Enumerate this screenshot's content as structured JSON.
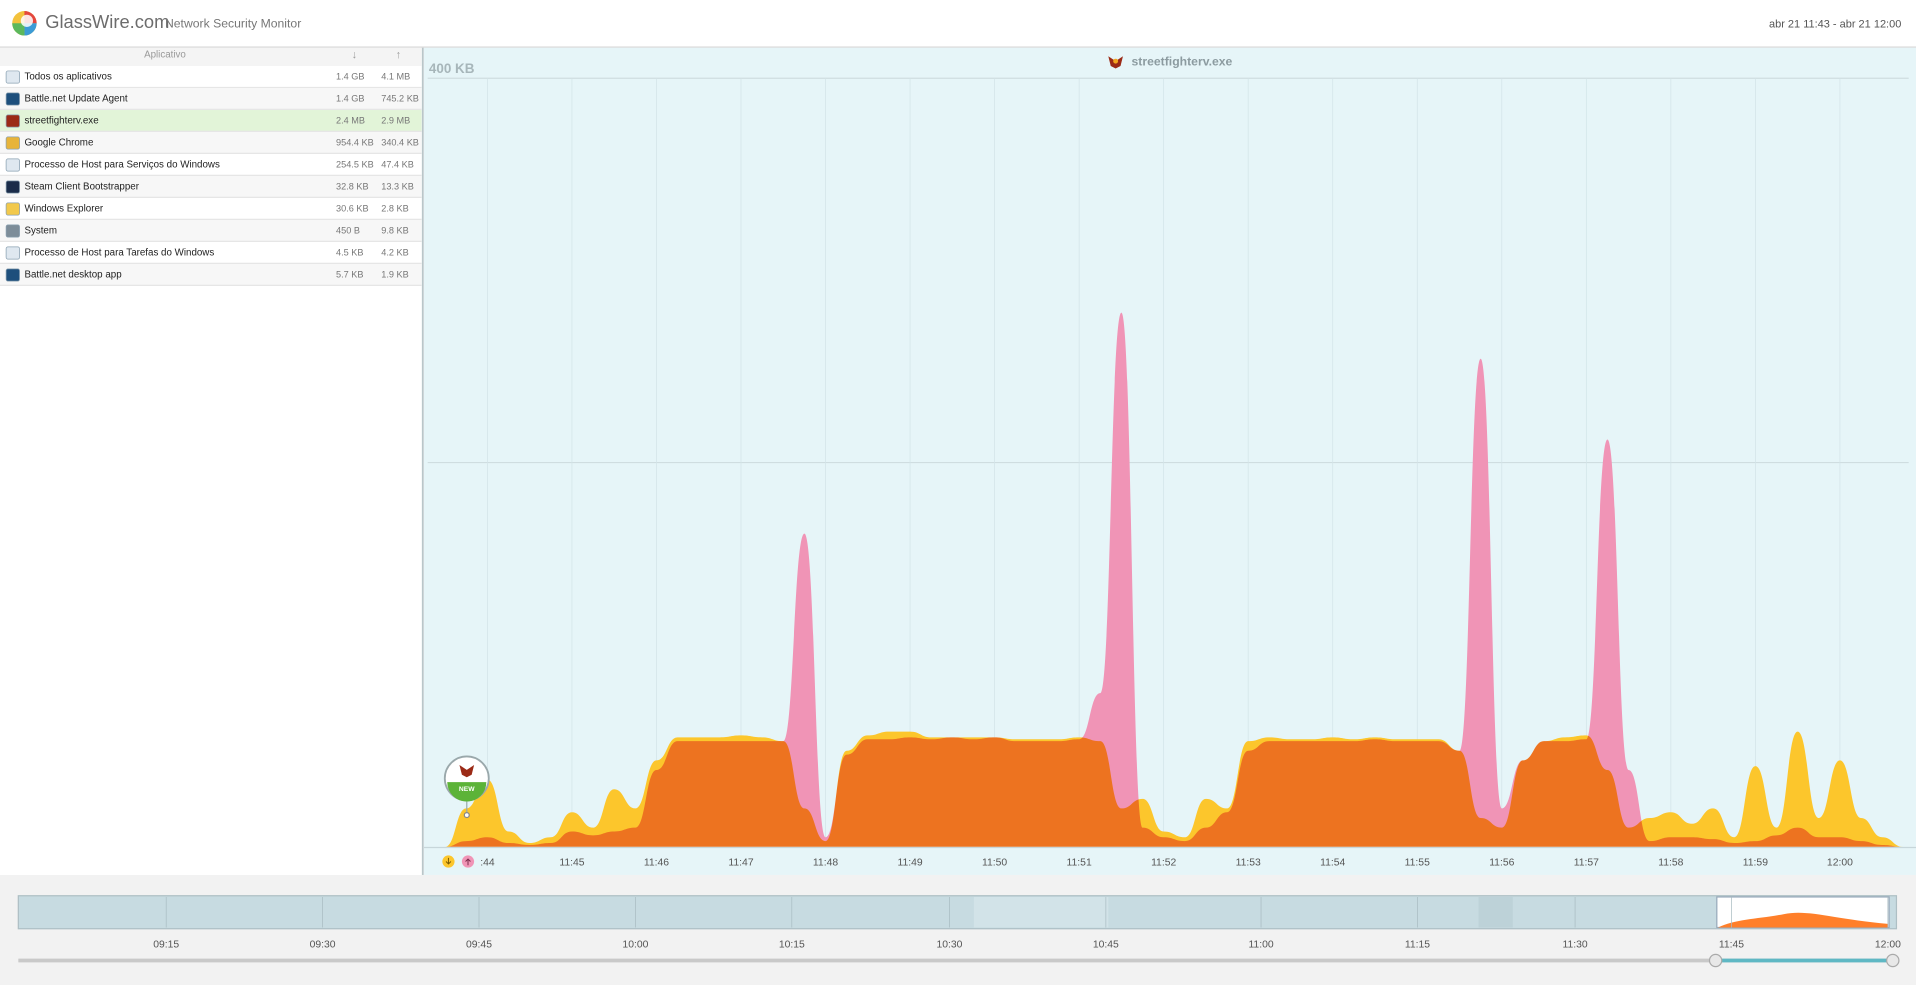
{
  "header": {
    "brand": "GlassWire.com",
    "subtitle": "Network Security Monitor",
    "range": "abr 21 11:43 - abr 21 12:00"
  },
  "table": {
    "columns": [
      "Aplicativo",
      "↓",
      "↑"
    ],
    "selected_row": 2,
    "rows": [
      [
        "Todos os aplicativos",
        "1.4 GB",
        "4.1 MB"
      ],
      [
        "Battle.net Update Agent",
        "1.4 GB",
        "745.2 KB"
      ],
      [
        "streetfighterv.exe",
        "2.4 MB",
        "2.9 MB"
      ],
      [
        "Google Chrome",
        "954.4 KB",
        "340.4 KB"
      ],
      [
        "Processo de Host para Serviços do Windows",
        "254.5 KB",
        "47.4 KB"
      ],
      [
        "Steam Client Bootstrapper",
        "32.8 KB",
        "13.3 KB"
      ],
      [
        "Windows Explorer",
        "30.6 KB",
        "2.8 KB"
      ],
      [
        "System",
        "450 B",
        "9.8 KB"
      ],
      [
        "Processo de Host para Tarefas do Windows",
        "4.5 KB",
        "4.2 KB"
      ],
      [
        "Battle.net desktop app",
        "5.7 KB",
        "1.9 KB"
      ]
    ]
  },
  "chart_data": {
    "type": "area",
    "title": "streetfighterv.exe",
    "marker_label": "NEW",
    "x": [
      43.5,
      43.75,
      44,
      44.25,
      44.5,
      44.75,
      45,
      45.25,
      45.5,
      45.75,
      46,
      46.25,
      46.5,
      46.75,
      47,
      47.25,
      47.5,
      47.75,
      48,
      48.25,
      48.5,
      48.75,
      49,
      49.25,
      49.5,
      49.75,
      50,
      50.25,
      50.5,
      50.75,
      51,
      51.25,
      51.5,
      51.75,
      52,
      52.25,
      52.5,
      52.75,
      53,
      53.25,
      53.5,
      53.75,
      54,
      54.25,
      54.5,
      54.75,
      55,
      55.25,
      55.5,
      55.75,
      56,
      56.25,
      56.5,
      56.75,
      57,
      57.25,
      57.5,
      57.75,
      58,
      58.25,
      58.5,
      58.75,
      59,
      59.25,
      59.5,
      59.75,
      60,
      60.25,
      60.5,
      60.75
    ],
    "xlim": [
      43.25,
      60.9
    ],
    "xticks": [
      {
        "value": 44,
        "label": ":44"
      },
      {
        "value": 45,
        "label": "11:45"
      },
      {
        "value": 46,
        "label": "11:46"
      },
      {
        "value": 47,
        "label": "11:47"
      },
      {
        "value": 48,
        "label": "11:48"
      },
      {
        "value": 49,
        "label": "11:49"
      },
      {
        "value": 50,
        "label": "11:50"
      },
      {
        "value": 51,
        "label": "11:51"
      },
      {
        "value": 52,
        "label": "11:52"
      },
      {
        "value": 53,
        "label": "11:53"
      },
      {
        "value": 54,
        "label": "11:54"
      },
      {
        "value": 55,
        "label": "11:55"
      },
      {
        "value": 56,
        "label": "11:56"
      },
      {
        "value": 57,
        "label": "11:57"
      },
      {
        "value": 58,
        "label": "11:58"
      },
      {
        "value": 59,
        "label": "11:59"
      },
      {
        "value": 60,
        "label": "12:00"
      }
    ],
    "ylim": [
      0,
      400
    ],
    "yticks": [
      {
        "value": 200,
        "label": null
      },
      {
        "value": 400,
        "label": "400 KB"
      }
    ],
    "grid": true,
    "series": [
      {
        "color": "#fcc62c",
        "values": [
          0,
          20,
          35,
          8,
          2,
          5,
          18,
          10,
          30,
          20,
          45,
          57,
          57,
          57,
          58,
          57,
          55,
          20,
          3,
          50,
          58,
          60,
          60,
          57,
          57,
          57,
          57,
          56,
          56,
          56,
          57,
          55,
          20,
          25,
          8,
          5,
          25,
          20,
          55,
          57,
          56,
          56,
          57,
          56,
          57,
          56,
          56,
          56,
          50,
          15,
          10,
          45,
          55,
          57,
          58,
          40,
          10,
          15,
          18,
          12,
          20,
          5,
          42,
          10,
          60,
          15,
          45,
          15,
          5,
          0
        ]
      },
      {
        "color": "#f094b6",
        "values": [
          0,
          3,
          5,
          2,
          1,
          2,
          8,
          6,
          8,
          10,
          40,
          55,
          55,
          55,
          55,
          55,
          55,
          163,
          5,
          48,
          56,
          56,
          57,
          56,
          57,
          56,
          57,
          55,
          55,
          55,
          56,
          80,
          278,
          10,
          5,
          3,
          10,
          18,
          50,
          55,
          55,
          55,
          55,
          55,
          56,
          55,
          55,
          55,
          50,
          254,
          20,
          45,
          55,
          55,
          56,
          212,
          40,
          3,
          5,
          5,
          4,
          2,
          3,
          6,
          10,
          5,
          5,
          3,
          1,
          0
        ]
      }
    ]
  },
  "timeline": {
    "ticks": [
      "09:15",
      "09:30",
      "09:45",
      "10:00",
      "10:15",
      "10:30",
      "10:45",
      "11:00",
      "11:15",
      "11:30",
      "11:45",
      "12:00"
    ]
  }
}
